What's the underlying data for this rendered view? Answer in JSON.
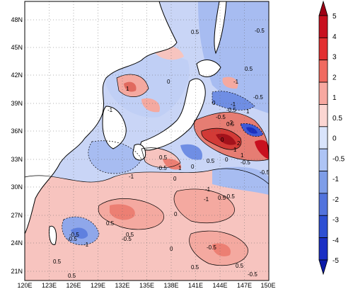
{
  "map": {
    "lon_ticks": [
      "120E",
      "123E",
      "126E",
      "129E",
      "132E",
      "135E",
      "138E",
      "141E",
      "144E",
      "147E",
      "150E"
    ],
    "lat_ticks": [
      "48N",
      "45N",
      "42N",
      "39N",
      "36N",
      "33N",
      "30N",
      "27N",
      "24N",
      "21N"
    ],
    "contour_labels": [
      "-0.5",
      "0.5",
      "1",
      "-1",
      "0",
      "-1",
      "0.5",
      "-0.5",
      "1",
      "0",
      "-0.5",
      "-1",
      "0.5",
      "-0.5",
      "0",
      "1",
      "0.5",
      "-0.5",
      "0",
      "0.5",
      "0",
      "-0.5",
      "-0.5",
      "1",
      "0",
      "0.5",
      "-0.5",
      "-2",
      "1",
      "2",
      "-1",
      "-0.5",
      "0.5",
      "0.5",
      "-1",
      "-0.5",
      "0",
      "-1",
      "-0.5",
      "0.5",
      "-1",
      "-0.5",
      "0",
      "0.5",
      "0.5",
      "0.5",
      "-0.5"
    ]
  },
  "colorbar": {
    "labels": [
      "5",
      "4",
      "3",
      "2",
      "1",
      "0.5",
      "0",
      "-0.5",
      "-1",
      "-2",
      "-3",
      "-4",
      "-5"
    ],
    "colors": [
      "#9e0015",
      "#c8101f",
      "#e32f30",
      "#f06a60",
      "#f7a8a0",
      "#fbd6d2",
      "#d9e4fb",
      "#aec4f5",
      "#7e9de8",
      "#5273dd",
      "#2d4fd3",
      "#1a2fc4",
      "#0b1aa8"
    ]
  }
}
